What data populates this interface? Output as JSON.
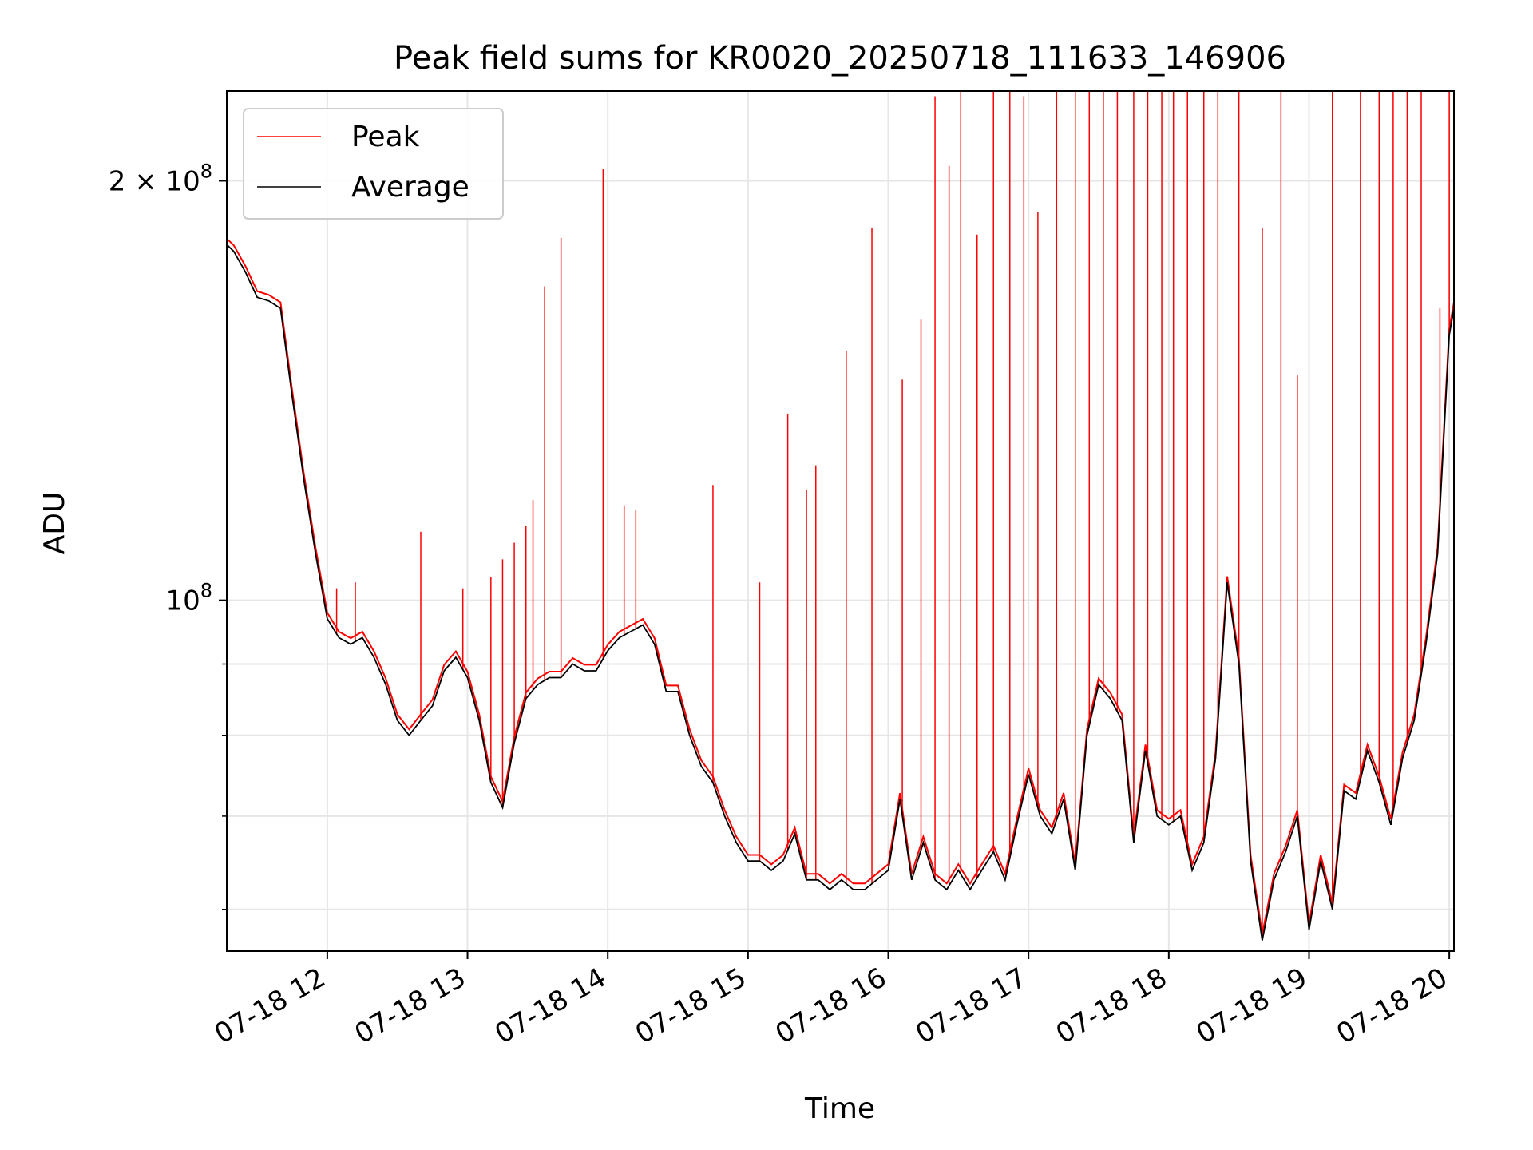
{
  "chart_data": {
    "type": "line",
    "title": "Peak field sums for KR0020_20250718_111633_146906",
    "xlabel": "Time",
    "ylabel": "ADU",
    "y_scale": "log",
    "x_range": [
      "2025-07-18 11:17",
      "2025-07-18 20:02"
    ],
    "ylim": [
      56000000,
      232000000
    ],
    "y_tick_labels": [
      "2 × 10^8",
      "10^8"
    ],
    "y_tick_values": [
      200000000,
      100000000
    ],
    "y_minor_gridlines": [
      90000000,
      80000000,
      70000000,
      60000000
    ],
    "x_tick_labels": [
      "07-18 12",
      "07-18 13",
      "07-18 14",
      "07-18 15",
      "07-18 16",
      "07-18 17",
      "07-18 18",
      "07-18 19",
      "07-18 20"
    ],
    "x_tick_values": [
      "2025-07-18 12:00",
      "2025-07-18 13:00",
      "2025-07-18 14:00",
      "2025-07-18 15:00",
      "2025-07-18 16:00",
      "2025-07-18 17:00",
      "2025-07-18 18:00",
      "2025-07-18 19:00",
      "2025-07-18 20:00"
    ],
    "grid": true,
    "legend_position": "top-left",
    "series": [
      {
        "name": "Average",
        "color": "#000000",
        "x": [
          "2025-07-18 11:17",
          "2025-07-18 11:20",
          "2025-07-18 11:25",
          "2025-07-18 11:30",
          "2025-07-18 11:35",
          "2025-07-18 11:40",
          "2025-07-18 11:45",
          "2025-07-18 11:50",
          "2025-07-18 11:55",
          "2025-07-18 12:00",
          "2025-07-18 12:05",
          "2025-07-18 12:10",
          "2025-07-18 12:15",
          "2025-07-18 12:20",
          "2025-07-18 12:25",
          "2025-07-18 12:30",
          "2025-07-18 12:35",
          "2025-07-18 12:40",
          "2025-07-18 12:45",
          "2025-07-18 12:50",
          "2025-07-18 12:55",
          "2025-07-18 13:00",
          "2025-07-18 13:05",
          "2025-07-18 13:10",
          "2025-07-18 13:15",
          "2025-07-18 13:20",
          "2025-07-18 13:25",
          "2025-07-18 13:30",
          "2025-07-18 13:35",
          "2025-07-18 13:40",
          "2025-07-18 13:45",
          "2025-07-18 13:50",
          "2025-07-18 13:55",
          "2025-07-18 14:00",
          "2025-07-18 14:05",
          "2025-07-18 14:10",
          "2025-07-18 14:15",
          "2025-07-18 14:20",
          "2025-07-18 14:25",
          "2025-07-18 14:30",
          "2025-07-18 14:35",
          "2025-07-18 14:40",
          "2025-07-18 14:45",
          "2025-07-18 14:50",
          "2025-07-18 14:55",
          "2025-07-18 15:00",
          "2025-07-18 15:05",
          "2025-07-18 15:10",
          "2025-07-18 15:15",
          "2025-07-18 15:20",
          "2025-07-18 15:25",
          "2025-07-18 15:30",
          "2025-07-18 15:35",
          "2025-07-18 15:40",
          "2025-07-18 15:45",
          "2025-07-18 15:50",
          "2025-07-18 15:55",
          "2025-07-18 16:00",
          "2025-07-18 16:05",
          "2025-07-18 16:10",
          "2025-07-18 16:15",
          "2025-07-18 16:20",
          "2025-07-18 16:25",
          "2025-07-18 16:30",
          "2025-07-18 16:35",
          "2025-07-18 16:40",
          "2025-07-18 16:45",
          "2025-07-18 16:50",
          "2025-07-18 16:55",
          "2025-07-18 17:00",
          "2025-07-18 17:05",
          "2025-07-18 17:10",
          "2025-07-18 17:15",
          "2025-07-18 17:20",
          "2025-07-18 17:25",
          "2025-07-18 17:30",
          "2025-07-18 17:35",
          "2025-07-18 17:40",
          "2025-07-18 17:45",
          "2025-07-18 17:50",
          "2025-07-18 17:55",
          "2025-07-18 18:00",
          "2025-07-18 18:05",
          "2025-07-18 18:10",
          "2025-07-18 18:15",
          "2025-07-18 18:20",
          "2025-07-18 18:25",
          "2025-07-18 18:30",
          "2025-07-18 18:35",
          "2025-07-18 18:40",
          "2025-07-18 18:45",
          "2025-07-18 18:50",
          "2025-07-18 18:55",
          "2025-07-18 19:00",
          "2025-07-18 19:05",
          "2025-07-18 19:10",
          "2025-07-18 19:15",
          "2025-07-18 19:20",
          "2025-07-18 19:25",
          "2025-07-18 19:30",
          "2025-07-18 19:35",
          "2025-07-18 19:40",
          "2025-07-18 19:45",
          "2025-07-18 19:50",
          "2025-07-18 19:55",
          "2025-07-18 20:00",
          "2025-07-18 20:02"
        ],
        "values": [
          180,
          178,
          172,
          165,
          164,
          162,
          140,
          122,
          108,
          97,
          94,
          93,
          94,
          91,
          87,
          82,
          80,
          82,
          84,
          89,
          91,
          88,
          82,
          74,
          71,
          79,
          85,
          87,
          88,
          88,
          90,
          89,
          89,
          92,
          94,
          95,
          96,
          93,
          86,
          86,
          80,
          76,
          74,
          70,
          67,
          65,
          65,
          64,
          65,
          68,
          63,
          63,
          62,
          63,
          62,
          62,
          63,
          64,
          72,
          63,
          67,
          63,
          62,
          64,
          62,
          64,
          66,
          63,
          69,
          75,
          70,
          68,
          72,
          64,
          80,
          87,
          85,
          82,
          67,
          78,
          70,
          69,
          70,
          64,
          67,
          77,
          103,
          90,
          65,
          57,
          63,
          66,
          70,
          58,
          65,
          60,
          73,
          72,
          78,
          74,
          69,
          77,
          82,
          93,
          108,
          155,
          162
        ]
      },
      {
        "name": "Peak",
        "color": "#ff0000",
        "x": [
          "2025-07-18 12:04",
          "2025-07-18 12:12",
          "2025-07-18 12:40",
          "2025-07-18 12:58",
          "2025-07-18 13:10",
          "2025-07-18 13:15",
          "2025-07-18 13:20",
          "2025-07-18 13:25",
          "2025-07-18 13:28",
          "2025-07-18 13:33",
          "2025-07-18 13:40",
          "2025-07-18 13:58",
          "2025-07-18 14:07",
          "2025-07-18 14:12",
          "2025-07-18 14:45",
          "2025-07-18 15:05",
          "2025-07-18 15:17",
          "2025-07-18 15:25",
          "2025-07-18 15:29",
          "2025-07-18 15:42",
          "2025-07-18 15:53",
          "2025-07-18 16:06",
          "2025-07-18 16:14",
          "2025-07-18 16:20",
          "2025-07-18 16:26",
          "2025-07-18 16:31",
          "2025-07-18 16:38",
          "2025-07-18 16:45",
          "2025-07-18 16:52",
          "2025-07-18 16:58",
          "2025-07-18 17:04",
          "2025-07-18 17:12",
          "2025-07-18 17:20",
          "2025-07-18 17:26",
          "2025-07-18 17:32",
          "2025-07-18 17:38",
          "2025-07-18 17:45",
          "2025-07-18 17:51",
          "2025-07-18 17:57",
          "2025-07-18 18:02",
          "2025-07-18 18:08",
          "2025-07-18 18:15",
          "2025-07-18 18:21",
          "2025-07-18 18:30",
          "2025-07-18 18:40",
          "2025-07-18 18:48",
          "2025-07-18 18:55",
          "2025-07-18 19:10",
          "2025-07-18 19:22",
          "2025-07-18 19:30",
          "2025-07-18 19:36",
          "2025-07-18 19:42",
          "2025-07-18 19:48",
          "2025-07-18 19:56",
          "2025-07-18 20:00"
        ],
        "values": [
          102,
          103,
          112,
          102,
          104,
          107,
          110,
          113,
          118,
          168,
          182,
          204,
          117,
          116,
          121,
          103,
          136,
          120,
          125,
          151,
          185,
          144,
          159,
          230,
          205,
          232,
          183,
          232,
          232,
          230,
          190,
          232,
          232,
          232,
          232,
          232,
          232,
          232,
          232,
          232,
          232,
          232,
          232,
          232,
          185,
          232,
          145,
          232,
          232,
          232,
          232,
          232,
          232,
          162,
          232
        ]
      }
    ]
  }
}
